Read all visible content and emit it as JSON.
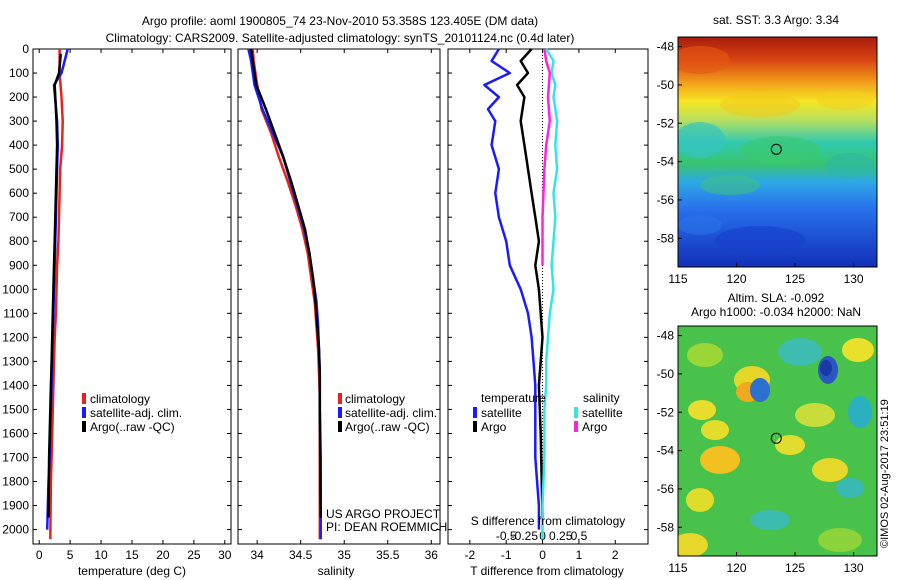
{
  "header": {
    "line1": "Argo profile: aoml 1900805_74 23-Nov-2010 53.358S 123.405E (DM data)",
    "line2": "Climatology: CARS2009. Satellite-adjusted climatology: synTS_20101124.nc (0.4d later)"
  },
  "credits": {
    "project": "US ARGO PROJECT",
    "pi": "PI: DEAN ROEMMICH",
    "stamp": "©IMOS 02-Aug-2017 23:51:19"
  },
  "colors": {
    "climatology": "#e8231a",
    "satellite": "#1a1aff",
    "argo": "#000000",
    "cyan": "#33e6e6",
    "magenta": "#ff22e0"
  },
  "chart_data": [
    {
      "type": "line",
      "id": "temperature",
      "xlabel": "temperature (deg C)",
      "ylabel": "",
      "xlim": [
        -1,
        31
      ],
      "ylim": [
        2060,
        0
      ],
      "xticks": [
        0,
        5,
        10,
        15,
        20,
        25,
        30
      ],
      "yticks": [
        0,
        100,
        200,
        300,
        400,
        500,
        600,
        700,
        800,
        900,
        1000,
        1100,
        1200,
        1300,
        1400,
        1500,
        1600,
        1700,
        1800,
        1900,
        2000
      ],
      "legend": [
        "climatology",
        "satellite-adj. clim.",
        "Argo(..raw -QC)"
      ],
      "series": [
        {
          "name": "climatology",
          "color": "#e8231a",
          "x": [
            3.3,
            3.3,
            3.6,
            3.8,
            3.7,
            3.4,
            3.3,
            3.2,
            3.1,
            2.9,
            2.8,
            2.7,
            2.5,
            2.4,
            2.3,
            2.2,
            2.1,
            2.0,
            1.9,
            1.8
          ],
          "y": [
            0,
            100,
            200,
            300,
            400,
            500,
            600,
            700,
            800,
            900,
            1000,
            1100,
            1200,
            1300,
            1400,
            1500,
            1600,
            1700,
            1800,
            2040
          ]
        },
        {
          "name": "satellite-adj. clim.",
          "color": "#1a1aff",
          "x": [
            4.6,
            3.6,
            2.4,
            2.9,
            3.0,
            2.9,
            2.8,
            2.7,
            2.6,
            2.5,
            2.4,
            2.3,
            2.2,
            2.1,
            2.0,
            1.9,
            1.8,
            1.7,
            1.5,
            1.3
          ],
          "y": [
            0,
            100,
            150,
            300,
            400,
            500,
            600,
            700,
            800,
            900,
            1000,
            1100,
            1200,
            1300,
            1400,
            1500,
            1600,
            1700,
            1800,
            2000
          ]
        },
        {
          "name": "Argo(..raw -QC)",
          "color": "#000000",
          "x": [
            3.5,
            3.2,
            2.5,
            2.8,
            2.9,
            2.8,
            2.7,
            2.6,
            2.5,
            2.4,
            2.3,
            2.2,
            2.1,
            2.0,
            1.9,
            1.8,
            1.7,
            1.6,
            1.5
          ],
          "y": [
            20,
            100,
            150,
            300,
            400,
            500,
            600,
            700,
            800,
            900,
            1000,
            1100,
            1200,
            1300,
            1400,
            1500,
            1600,
            1700,
            1950
          ]
        }
      ]
    },
    {
      "type": "line",
      "id": "salinity",
      "xlabel": "salinity",
      "xlim": [
        33.78,
        36.1
      ],
      "ylim": [
        2060,
        0
      ],
      "xticks": [
        34,
        34.5,
        35,
        35.5,
        36
      ],
      "legend": [
        "climatology",
        "satellite-adj. clim.",
        "Argo(..raw -QC)"
      ],
      "series": [
        {
          "name": "climatology",
          "color": "#e8231a",
          "x": [
            33.95,
            33.96,
            34.0,
            34.05,
            34.16,
            34.25,
            34.35,
            34.44,
            34.52,
            34.58,
            34.62,
            34.66,
            34.68,
            34.7,
            34.71,
            34.72,
            34.72,
            34.72,
            34.72,
            34.72
          ],
          "y": [
            0,
            50,
            150,
            250,
            350,
            450,
            550,
            650,
            750,
            850,
            950,
            1050,
            1150,
            1250,
            1350,
            1450,
            1550,
            1700,
            1900,
            2040
          ]
        },
        {
          "name": "satellite-adj. clim.",
          "color": "#1a1aff",
          "x": [
            33.9,
            33.93,
            33.97,
            34.06,
            34.18,
            34.3,
            34.38,
            34.46,
            34.54,
            34.6,
            34.64,
            34.68,
            34.7,
            34.71,
            34.72,
            34.72,
            34.73,
            34.73
          ],
          "y": [
            0,
            50,
            150,
            250,
            350,
            450,
            550,
            650,
            750,
            850,
            950,
            1050,
            1150,
            1250,
            1350,
            1500,
            1700,
            2040
          ]
        },
        {
          "name": "Argo(..raw -QC)",
          "color": "#000000",
          "x": [
            33.93,
            33.95,
            33.99,
            34.1,
            34.2,
            34.3,
            34.39,
            34.47,
            34.55,
            34.6,
            34.64,
            34.67,
            34.69,
            34.71,
            34.72,
            34.72,
            34.73
          ],
          "y": [
            0,
            50,
            150,
            250,
            350,
            450,
            550,
            650,
            750,
            850,
            950,
            1050,
            1150,
            1250,
            1350,
            1500,
            1950
          ]
        }
      ]
    },
    {
      "type": "line",
      "id": "difference",
      "xlabel": "T difference from climatology",
      "xlabel_top": "S difference from climatology",
      "xlim": [
        -2.6,
        2.9
      ],
      "ylim": [
        2060,
        0
      ],
      "xticks": [
        -2,
        -1,
        0,
        1,
        2
      ],
      "xticks_top": [
        "-0.5",
        "-0.25",
        "0",
        "0.25",
        "0.5"
      ],
      "legend_groups": [
        {
          "title": "temperature",
          "items": [
            "satellite",
            "Argo"
          ]
        },
        {
          "title": "salinity",
          "items": [
            "satellite",
            "Argo"
          ]
        }
      ],
      "series": [
        {
          "name": "temperature satellite",
          "color": "#1a1aff",
          "x": [
            -1.2,
            -1.4,
            -0.9,
            -1.6,
            -1.2,
            -1.5,
            -1.3,
            -1.4,
            -1.2,
            -1.3,
            -1.2,
            -1.0,
            -0.9,
            -0.6,
            -0.4,
            -0.3,
            -0.25,
            -0.2,
            -0.2,
            -0.2,
            -0.1,
            -0.1
          ],
          "y": [
            0,
            50,
            100,
            150,
            200,
            250,
            300,
            400,
            500,
            600,
            700,
            800,
            900,
            1000,
            1100,
            1200,
            1300,
            1400,
            1500,
            1700,
            1900,
            2000
          ]
        },
        {
          "name": "temperature Argo",
          "color": "#000000",
          "x": [
            -0.3,
            -0.6,
            -0.4,
            -0.7,
            -0.5,
            -0.6,
            -0.5,
            -0.4,
            -0.3,
            -0.2,
            -0.1,
            -0.2,
            -0.1,
            -0.05,
            0.0,
            -0.1,
            -0.05,
            0.0
          ],
          "y": [
            0,
            50,
            100,
            150,
            200,
            300,
            400,
            500,
            600,
            700,
            800,
            900,
            1000,
            1100,
            1200,
            1400,
            1600,
            1950
          ]
        },
        {
          "name": "salinity satellite",
          "color": "#33e6e6",
          "x": [
            0.1,
            0.3,
            0.25,
            0.35,
            0.3,
            0.4,
            0.35,
            0.4,
            0.3,
            0.35,
            0.3,
            0.25,
            0.3,
            0.2,
            0.15,
            0.1,
            0.1,
            0.05,
            0.05,
            0.0,
            0.0
          ],
          "y": [
            0,
            50,
            100,
            150,
            200,
            300,
            400,
            500,
            600,
            700,
            800,
            900,
            1000,
            1100,
            1200,
            1300,
            1400,
            1500,
            1700,
            1900,
            2040
          ]
        },
        {
          "name": "salinity Argo",
          "color": "#ff22e0",
          "x": [
            0.05,
            0.1,
            0.2,
            0.15,
            0.2,
            0.1,
            0.05,
            0.0,
            0.0
          ],
          "y": [
            0,
            50,
            100,
            200,
            300,
            400,
            500,
            700,
            900
          ]
        }
      ]
    },
    {
      "type": "heatmap",
      "id": "sst-map",
      "title": "sat. SST: 3.3  Argo: 3.34",
      "xlim": [
        115,
        132
      ],
      "ylim": [
        -59.5,
        -47.5
      ],
      "xticks": [
        115,
        120,
        125,
        130
      ],
      "yticks": [
        -48,
        -50,
        -52,
        -54,
        -56,
        -58
      ],
      "marker": {
        "lon": 123.4,
        "lat": -53.36
      }
    },
    {
      "type": "heatmap",
      "id": "sla-map",
      "title": "Altim. SLA: -0.092",
      "subtitle": "Argo h1000: -0.034  h2000: NaN",
      "xlim": [
        115,
        132
      ],
      "ylim": [
        -59.5,
        -47.5
      ],
      "xticks": [
        115,
        120,
        125,
        130
      ],
      "yticks": [
        -48,
        -50,
        -52,
        -54,
        -56,
        -58
      ],
      "marker": {
        "lon": 123.4,
        "lat": -53.36
      }
    }
  ]
}
